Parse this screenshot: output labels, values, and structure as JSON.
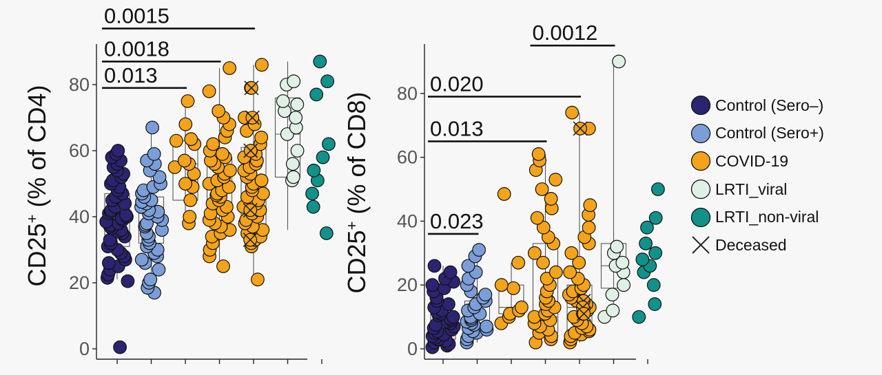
{
  "colors": {
    "sero_neg": "#2b2470",
    "sero_pos": "#7b9ed9",
    "covid": "#f5a31a",
    "lrti_viral": "#dff0e4",
    "lrti_nonviral": "#10928a"
  },
  "legend": [
    {
      "label": "Control (Sero–)",
      "color_key": "sero_neg"
    },
    {
      "label": "Control (Sero+)",
      "color_key": "sero_pos"
    },
    {
      "label": "COVID-19",
      "color_key": "covid"
    },
    {
      "label": "LRTI_viral",
      "color_key": "lrti_viral"
    },
    {
      "label": "LRTI_non-viral",
      "color_key": "lrti_nonviral"
    },
    {
      "label": "Deceased",
      "color_key": "cross"
    }
  ],
  "chart_data": [
    {
      "type": "scatter",
      "ylabel_main": "CD25",
      "ylabel_sup": "+",
      "ylabel_rest": " (% of CD4)",
      "ylim": [
        0,
        90
      ],
      "yticks": [
        "0",
        "20",
        "40",
        "60",
        "80"
      ],
      "groups": [
        {
          "color_key": "sero_neg",
          "box": [
            31,
            39,
            47
          ],
          "whisker": [
            21,
            60
          ],
          "values": [
            0.5,
            20.5,
            21.5,
            22.5,
            24,
            25,
            26,
            27,
            28,
            29,
            30,
            31,
            32,
            33,
            34,
            35,
            35.5,
            36,
            36.5,
            37,
            37.5,
            38,
            38.5,
            39,
            39.5,
            40,
            40.5,
            41,
            41.5,
            42,
            43,
            44,
            45,
            46,
            47,
            48,
            49,
            50,
            51,
            52,
            53,
            54,
            55,
            56,
            57,
            58,
            59,
            60
          ]
        },
        {
          "color_key": "sero_pos",
          "box": [
            32,
            41,
            46
          ],
          "whisker": [
            17,
            67
          ],
          "values": [
            17,
            18.5,
            20,
            21,
            24,
            26,
            27,
            28,
            29,
            30,
            31,
            32,
            33,
            34,
            35,
            36,
            37,
            37.5,
            38,
            39,
            40,
            41,
            41.5,
            42,
            43,
            44,
            44.5,
            45,
            46,
            47,
            48,
            49,
            50,
            52,
            54,
            56,
            57,
            59,
            67
          ]
        },
        {
          "color_key": "covid",
          "box": [
            45,
            56,
            63
          ],
          "whisker": [
            38,
            75
          ],
          "values": [
            38,
            40,
            45,
            49,
            50,
            53,
            55,
            56,
            57,
            62,
            63,
            63.5,
            68,
            75
          ]
        },
        {
          "color_key": "covid",
          "box": [
            41,
            49,
            58
          ],
          "whisker": [
            25,
            85
          ],
          "values": [
            25,
            28,
            30,
            32,
            34,
            35,
            36,
            37,
            38,
            39,
            40,
            41,
            42,
            43,
            44,
            45,
            46,
            46.5,
            47,
            48,
            49,
            50,
            51,
            52,
            53,
            54,
            55,
            56,
            57,
            58,
            59,
            60,
            62,
            64,
            66,
            68,
            70,
            72,
            78,
            85
          ]
        },
        {
          "color_key": "covid",
          "box": [
            37,
            45,
            61
          ],
          "whisker": [
            21,
            86
          ],
          "values": [
            21,
            31,
            32,
            33,
            34,
            35,
            36,
            37,
            38,
            39,
            40,
            41,
            42,
            43,
            44,
            45,
            46,
            47,
            48,
            49,
            50,
            51,
            52,
            53,
            54,
            55,
            56,
            57,
            58,
            59,
            60,
            62,
            64,
            66,
            68,
            70,
            79,
            86
          ],
          "deceased": [
            79,
            70,
            60,
            42,
            33
          ]
        },
        {
          "color_key": "lrti_viral",
          "box": [
            52,
            65,
            76
          ],
          "whisker": [
            36,
            87
          ],
          "values": [
            51,
            52,
            56,
            60,
            65,
            67,
            70,
            72,
            74,
            75,
            80,
            81
          ]
        },
        {
          "color_key": "lrti_nonviral",
          "box": null,
          "whisker": null,
          "values": [
            35,
            43,
            47,
            51,
            54,
            58,
            62,
            77,
            81,
            87
          ]
        }
      ],
      "sig": [
        {
          "label": "0.013",
          "from": 0,
          "to": 2,
          "y": 79
        },
        {
          "label": "0.0018",
          "from": 0,
          "to": 3,
          "y": 87
        },
        {
          "label": "0.0015",
          "from": 0,
          "to": 4,
          "y": 97
        }
      ]
    },
    {
      "type": "scatter",
      "ylabel_main": "CD25",
      "ylabel_sup": "+",
      "ylabel_rest": " (% of CD8)",
      "ylim": [
        0,
        95
      ],
      "yticks": [
        "0",
        "20",
        "40",
        "60",
        "80"
      ],
      "groups": [
        {
          "color_key": "sero_neg",
          "box": [
            3,
            8,
            12
          ],
          "whisker": [
            0,
            26
          ],
          "values": [
            0.5,
            1,
            1.5,
            2,
            2.5,
            3,
            3.5,
            4,
            4.5,
            5,
            5.5,
            6,
            6.5,
            7,
            7.5,
            8,
            8.5,
            9,
            9.5,
            10,
            10.5,
            11,
            11.5,
            12,
            13,
            14,
            15,
            16,
            18,
            19,
            20,
            21,
            22,
            24,
            26
          ]
        },
        {
          "color_key": "sero_pos",
          "box": [
            5,
            8,
            15
          ],
          "whisker": [
            2,
            31
          ],
          "values": [
            2,
            3,
            4,
            5,
            5.5,
            6,
            6.5,
            7,
            7.5,
            8,
            8.5,
            9,
            9.5,
            10,
            11,
            12,
            13,
            14,
            15,
            16,
            17,
            18,
            20,
            22,
            24,
            26,
            29,
            31
          ]
        },
        {
          "color_key": "covid",
          "box": [
            11,
            13,
            20
          ],
          "whisker": [
            8,
            27
          ],
          "values": [
            8,
            10,
            11,
            12,
            13,
            19,
            20,
            27,
            48.5
          ]
        },
        {
          "color_key": "covid",
          "box": [
            5,
            10,
            33
          ],
          "whisker": [
            2,
            61
          ],
          "values": [
            2,
            3,
            4,
            5,
            6,
            7,
            8,
            9,
            10,
            11,
            12,
            13,
            14,
            15,
            16,
            18,
            20,
            22,
            24,
            27,
            30,
            33,
            35,
            38,
            41,
            44,
            47,
            50,
            53,
            56,
            59,
            61
          ]
        },
        {
          "color_key": "covid",
          "box": [
            6,
            13,
            20
          ],
          "whisker": [
            2,
            74
          ],
          "values": [
            2,
            3,
            4,
            4.5,
            5,
            5.5,
            6,
            6.5,
            7,
            8,
            9,
            10,
            11,
            12,
            13,
            14,
            15,
            16,
            17,
            18,
            19,
            20,
            22,
            24,
            27,
            30,
            33,
            35,
            38,
            42,
            45,
            69,
            74
          ],
          "deceased": [
            69,
            15,
            13,
            11
          ]
        },
        {
          "color_key": "lrti_viral",
          "box": [
            19,
            26,
            33
          ],
          "whisker": [
            10,
            90
          ],
          "values": [
            10,
            12,
            17,
            20,
            24,
            26,
            27,
            30,
            32,
            90
          ]
        },
        {
          "color_key": "lrti_nonviral",
          "box": null,
          "whisker": null,
          "values": [
            10,
            14,
            20,
            24,
            26,
            28,
            30,
            33,
            38,
            41,
            50
          ]
        }
      ],
      "sig": [
        {
          "label": "0.023",
          "from": 0,
          "to": 1,
          "y": 36
        },
        {
          "label": "0.013",
          "from": 0,
          "to": 3,
          "y": 65
        },
        {
          "label": "0.020",
          "from": 0,
          "to": 4,
          "y": 79
        },
        {
          "label": "0.0012",
          "from": 3,
          "to": 5,
          "y": 95
        }
      ]
    }
  ]
}
